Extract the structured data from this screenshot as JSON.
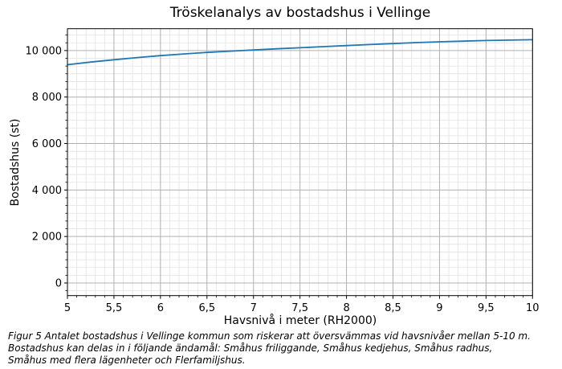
{
  "title": "Tröskelanalys av bostadshus i Vellinge",
  "chart_data": {
    "type": "line",
    "title": "Tröskelanalys av bostadshus i Vellinge",
    "xlabel": "Havsnivå i meter (RH2000)",
    "ylabel": "Bostadshus (st)",
    "x": [
      5.0,
      5.25,
      5.5,
      5.75,
      6.0,
      6.25,
      6.5,
      6.75,
      7.0,
      7.25,
      7.5,
      7.75,
      8.0,
      8.25,
      8.5,
      8.75,
      9.0,
      9.25,
      9.5,
      9.75,
      10.0
    ],
    "y": [
      9390,
      9505,
      9605,
      9700,
      9780,
      9855,
      9920,
      9975,
      10025,
      10075,
      10120,
      10170,
      10215,
      10260,
      10300,
      10340,
      10375,
      10405,
      10430,
      10450,
      10465
    ],
    "xlim": [
      5,
      10
    ],
    "ylim": [
      -543,
      10940
    ],
    "xticks": {
      "values": [
        5,
        5.5,
        6,
        6.5,
        7,
        7.5,
        8,
        8.5,
        9,
        9.5,
        10
      ],
      "labels": [
        "5",
        "5,5",
        "6",
        "6,5",
        "7",
        "7,5",
        "8",
        "8,5",
        "9",
        "9,5",
        "10"
      ]
    },
    "yticks": {
      "values": [
        0,
        2000,
        4000,
        6000,
        8000,
        10000
      ],
      "labels": [
        "0",
        "2 000",
        "4 000",
        "6 000",
        "8 000",
        "10 000"
      ]
    },
    "x_minor_step": 0.1,
    "y_minor_step": 333.3333,
    "x_major_step": 0.5,
    "y_major_step": 2000,
    "grid": true,
    "legend": "none",
    "line_color": "#1f77b4",
    "major_grid_color": "#b0b0b0",
    "minor_grid_color": "#e2e2e2",
    "spine_color": "#000000"
  },
  "caption": {
    "lines": [
      "Figur 5 Antalet bostadshus i Vellinge kommun som riskerar att översvämmas vid havsnivåer mellan 5-10 m.",
      "Bostadshus kan delas in i följande ändamål: Småhus friliggande, Småhus kedjehus, Småhus radhus,",
      "Småhus med flera lägenheter och Flerfamiljshus."
    ]
  }
}
